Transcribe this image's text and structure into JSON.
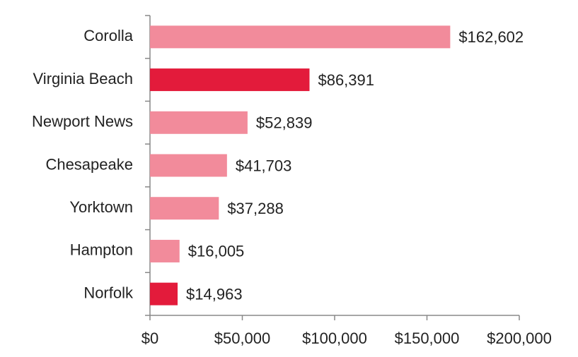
{
  "chart_data": {
    "type": "hbar",
    "categories": [
      "Corolla",
      "Virginia Beach",
      "Newport News",
      "Chesapeake",
      "Yorktown",
      "Hampton",
      "Norfolk"
    ],
    "values": [
      162602,
      86391,
      52839,
      41703,
      37288,
      16005,
      14963
    ],
    "value_labels": [
      "$162,602",
      "$86,391",
      "$52,839",
      "$41,703",
      "$37,288",
      "$16,005",
      "$14,963"
    ],
    "colors": [
      "#f28b9b",
      "#e31b3b",
      "#f28b9b",
      "#f28b9b",
      "#f28b9b",
      "#f28b9b",
      "#e31b3b"
    ],
    "xlim": [
      0,
      200000
    ],
    "xticks": [
      {
        "value": 0,
        "label": "$0"
      },
      {
        "value": 50000,
        "label": "$50,000"
      },
      {
        "value": 100000,
        "label": "$100,000"
      },
      {
        "value": 150000,
        "label": "$150,000"
      },
      {
        "value": 200000,
        "label": "$200,000"
      }
    ],
    "grid": false
  }
}
